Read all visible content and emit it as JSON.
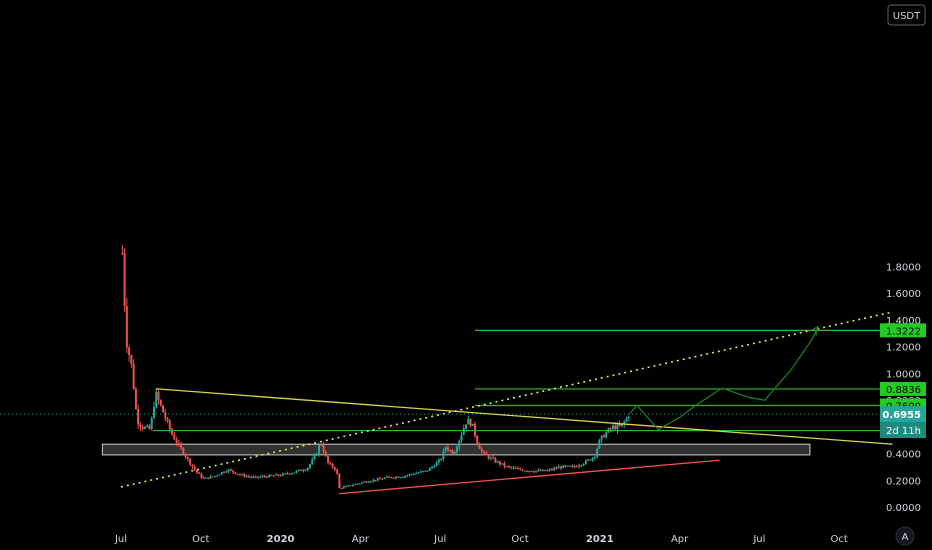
{
  "chart_data": {
    "type": "candlestick",
    "currency": "USDT",
    "footer_glyph": "A",
    "ylim": [
      -0.06,
      1.85
    ],
    "y_ticks": [
      "0.0000",
      "0.2000",
      "0.4000",
      "0.6000",
      "0.8000",
      "1.0000",
      "1.2000",
      "1.4000",
      "1.6000",
      "1.8000"
    ],
    "x_ticks": [
      {
        "label": "Jul",
        "t": 0,
        "bold": false
      },
      {
        "label": "Oct",
        "t": 3,
        "bold": false
      },
      {
        "label": "2020",
        "t": 6,
        "bold": true
      },
      {
        "label": "Apr",
        "t": 9,
        "bold": false
      },
      {
        "label": "Jul",
        "t": 12,
        "bold": false
      },
      {
        "label": "Oct",
        "t": 15,
        "bold": false
      },
      {
        "label": "2021",
        "t": 18,
        "bold": true
      },
      {
        "label": "Apr",
        "t": 21,
        "bold": false
      },
      {
        "label": "Jul",
        "t": 24,
        "bold": false
      },
      {
        "label": "Oct",
        "t": 27,
        "bold": false
      }
    ],
    "price_anchors": [
      [
        0.05,
        1.9
      ],
      [
        0.2,
        1.25
      ],
      [
        0.4,
        1.05
      ],
      [
        0.6,
        0.65
      ],
      [
        0.8,
        0.6
      ],
      [
        1.1,
        0.58
      ],
      [
        1.3,
        0.85
      ],
      [
        1.6,
        0.7
      ],
      [
        1.9,
        0.55
      ],
      [
        2.2,
        0.45
      ],
      [
        2.5,
        0.36
      ],
      [
        2.8,
        0.27
      ],
      [
        3.1,
        0.21
      ],
      [
        3.5,
        0.23
      ],
      [
        4.0,
        0.28
      ],
      [
        4.5,
        0.24
      ],
      [
        5.0,
        0.22
      ],
      [
        5.5,
        0.23
      ],
      [
        6.0,
        0.24
      ],
      [
        6.5,
        0.26
      ],
      [
        7.0,
        0.29
      ],
      [
        7.3,
        0.38
      ],
      [
        7.5,
        0.49
      ],
      [
        7.65,
        0.4
      ],
      [
        7.8,
        0.32
      ],
      [
        8.1,
        0.28
      ],
      [
        8.2,
        0.14
      ],
      [
        8.6,
        0.16
      ],
      [
        9.2,
        0.19
      ],
      [
        10.0,
        0.22
      ],
      [
        10.6,
        0.23
      ],
      [
        11.0,
        0.25
      ],
      [
        11.5,
        0.27
      ],
      [
        12.0,
        0.35
      ],
      [
        12.2,
        0.45
      ],
      [
        12.5,
        0.4
      ],
      [
        12.8,
        0.55
      ],
      [
        13.0,
        0.65
      ],
      [
        13.2,
        0.62
      ],
      [
        13.4,
        0.48
      ],
      [
        13.6,
        0.4
      ],
      [
        14.0,
        0.35
      ],
      [
        14.5,
        0.3
      ],
      [
        15.0,
        0.28
      ],
      [
        15.5,
        0.27
      ],
      [
        16.0,
        0.27
      ],
      [
        16.5,
        0.3
      ],
      [
        17.0,
        0.3
      ],
      [
        17.5,
        0.34
      ],
      [
        17.8,
        0.38
      ],
      [
        18.0,
        0.5
      ],
      [
        18.2,
        0.55
      ],
      [
        18.5,
        0.6
      ],
      [
        18.8,
        0.6
      ],
      [
        19.0,
        0.66
      ],
      [
        19.1,
        0.6955
      ]
    ],
    "current_price": "0.6955",
    "countdown": "2d 11h",
    "levels": [
      {
        "value": 1.3222,
        "label": "1.3222",
        "t_from": 13.3,
        "t_to": 28.9
      },
      {
        "value": 0.8836,
        "label": "0.8836",
        "t_from": 13.3,
        "t_to": 28.9
      },
      {
        "value": 0.76,
        "label": "0.7600",
        "t_from": 13.3,
        "t_to": 28.9
      },
      {
        "value": 0.5723,
        "label": "0.5723",
        "t_from": 1.2,
        "t_to": 28.9
      }
    ],
    "hidden_label": "0.6200",
    "support_box": {
      "t_from": -0.7,
      "t_to": 25.9,
      "y_from": 0.39,
      "y_to": 0.47
    },
    "trendlines": [
      {
        "name": "descending",
        "color": "#d4d64a",
        "dashed": false,
        "points": [
          [
            1.3,
            0.885
          ],
          [
            29.0,
            0.47
          ]
        ]
      },
      {
        "name": "rising-dotted",
        "color": "#e6e84a",
        "dashed": true,
        "points": [
          [
            0.0,
            0.15
          ],
          [
            29.0,
            1.46
          ]
        ]
      },
      {
        "name": "support",
        "color": "#f0544f",
        "dashed": false,
        "points": [
          [
            8.2,
            0.1
          ],
          [
            22.5,
            0.35
          ]
        ]
      }
    ],
    "projection": [
      [
        19.1,
        0.6955
      ],
      [
        19.4,
        0.76
      ],
      [
        20.2,
        0.58
      ],
      [
        21.0,
        0.67
      ],
      [
        21.6,
        0.76
      ],
      [
        22.6,
        0.89
      ],
      [
        23.6,
        0.82
      ],
      [
        24.2,
        0.8
      ],
      [
        25.2,
        1.03
      ],
      [
        26.0,
        1.26
      ],
      [
        26.2,
        1.35
      ]
    ]
  }
}
